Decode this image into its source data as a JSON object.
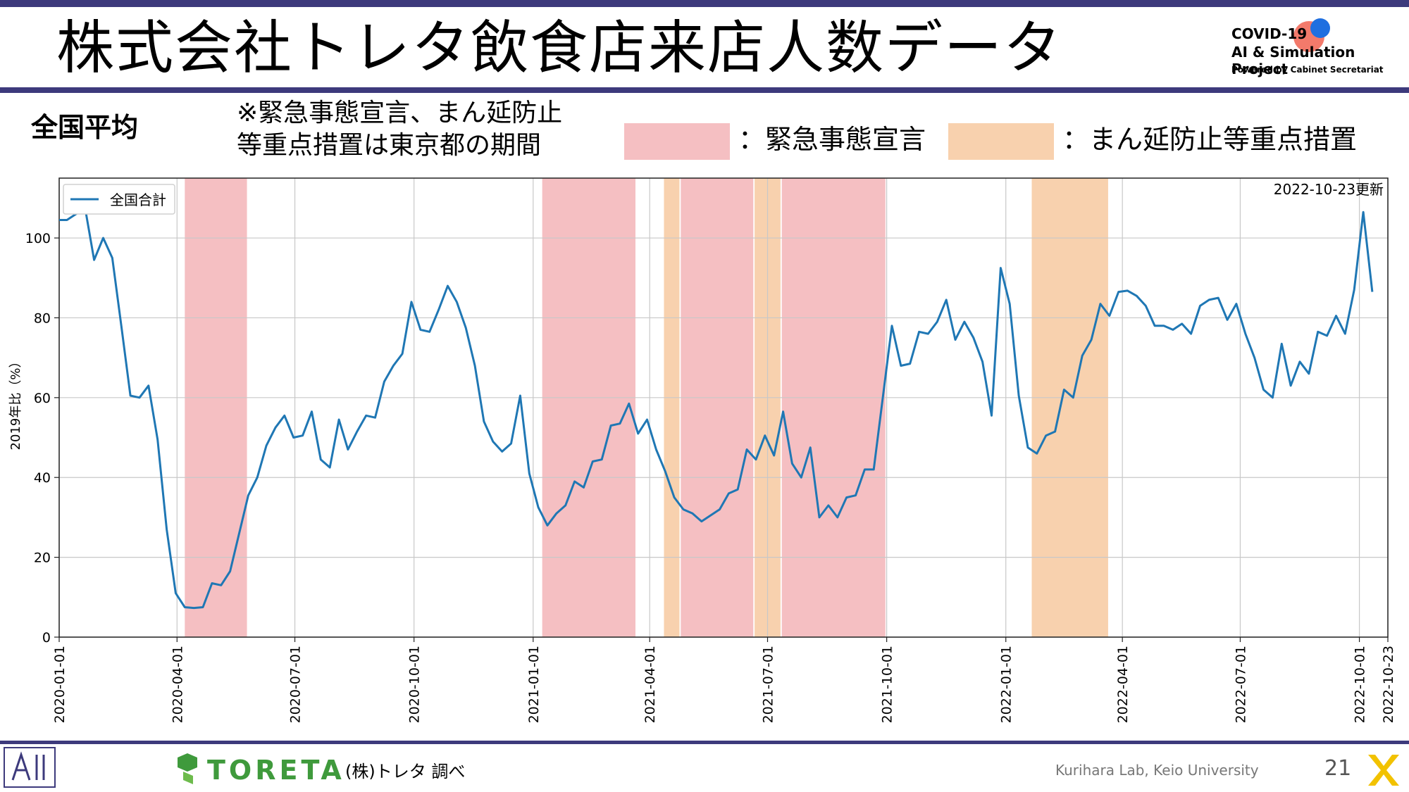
{
  "header": {
    "title": "株式会社トレタ飲食店来店人数データ"
  },
  "logo": {
    "line1": "COVID-19",
    "line2": "AI & Simulation Project",
    "line3": "Powered by Cabinet Secretariat"
  },
  "subtitle": "全国平均",
  "note": {
    "line1": "※緊急事態宣言、まん延防止",
    "line2": "等重点措置は東京都の期間"
  },
  "legend_boxes": [
    {
      "label": "：緊急事態宣言",
      "color": "#f5bfc2"
    },
    {
      "label": "：まん延防止等重点措置",
      "color": "#f8d1ae"
    }
  ],
  "footer": {
    "brand": "TORETA",
    "source": "(株)トレタ 調べ",
    "credit": "Kurihara Lab, Keio University",
    "page": "21"
  },
  "colors": {
    "accent": "#3d3a7c",
    "line": "#1f77b4",
    "emergency": "#f5bfc2",
    "quasi": "#f8d1ae",
    "brand": "#3f9a3c"
  },
  "chart_data": {
    "type": "line",
    "ylabel": "2019年比（%）",
    "xlabel": "",
    "updated": "2022-10-23更新",
    "ylim": [
      0,
      115
    ],
    "xlim": [
      "2020-01-01",
      "2022-10-23"
    ],
    "y_ticks": [
      0,
      20,
      40,
      60,
      80,
      100
    ],
    "x_ticks": [
      "2020-01-01",
      "2020-04-01",
      "2020-07-01",
      "2020-10-01",
      "2021-01-01",
      "2021-04-01",
      "2021-07-01",
      "2021-10-01",
      "2022-01-01",
      "2022-04-01",
      "2022-07-01",
      "2022-10-01",
      "2022-10-23"
    ],
    "grid": true,
    "legend": "top-left",
    "shaded_periods": [
      {
        "kind": "emergency",
        "start": "2020-04-07",
        "end": "2020-05-25"
      },
      {
        "kind": "emergency",
        "start": "2021-01-08",
        "end": "2021-03-21"
      },
      {
        "kind": "quasi",
        "start": "2021-04-12",
        "end": "2021-04-24"
      },
      {
        "kind": "emergency",
        "start": "2021-04-25",
        "end": "2021-06-20"
      },
      {
        "kind": "quasi",
        "start": "2021-06-21",
        "end": "2021-07-11"
      },
      {
        "kind": "emergency",
        "start": "2021-07-12",
        "end": "2021-09-30"
      },
      {
        "kind": "quasi",
        "start": "2022-01-21",
        "end": "2022-03-21"
      }
    ],
    "series": [
      {
        "name": "全国合計",
        "points": [
          [
            "2020-01-01",
            104.5
          ],
          [
            "2020-01-07",
            104.5
          ],
          [
            "2020-01-14",
            106
          ],
          [
            "2020-01-21",
            107.5
          ],
          [
            "2020-01-28",
            94.5
          ],
          [
            "2020-02-04",
            100
          ],
          [
            "2020-02-11",
            95
          ],
          [
            "2020-02-18",
            78
          ],
          [
            "2020-02-25",
            60.5
          ],
          [
            "2020-03-03",
            60
          ],
          [
            "2020-03-10",
            63
          ],
          [
            "2020-03-17",
            49.5
          ],
          [
            "2020-03-24",
            27
          ],
          [
            "2020-03-31",
            11
          ],
          [
            "2020-04-07",
            7.5
          ],
          [
            "2020-04-14",
            7.3
          ],
          [
            "2020-04-21",
            7.5
          ],
          [
            "2020-04-28",
            13.5
          ],
          [
            "2020-05-05",
            13
          ],
          [
            "2020-05-12",
            16.5
          ],
          [
            "2020-05-19",
            26
          ],
          [
            "2020-05-26",
            35.5
          ],
          [
            "2020-06-02",
            40
          ],
          [
            "2020-06-09",
            48
          ],
          [
            "2020-06-16",
            52.5
          ],
          [
            "2020-06-23",
            55.5
          ],
          [
            "2020-06-30",
            50
          ],
          [
            "2020-07-07",
            50.5
          ],
          [
            "2020-07-14",
            56.5
          ],
          [
            "2020-07-21",
            44.5
          ],
          [
            "2020-07-28",
            42.5
          ],
          [
            "2020-08-04",
            54.5
          ],
          [
            "2020-08-11",
            47
          ],
          [
            "2020-08-18",
            51.5
          ],
          [
            "2020-08-25",
            55.5
          ],
          [
            "2020-09-01",
            55
          ],
          [
            "2020-09-08",
            64
          ],
          [
            "2020-09-15",
            68
          ],
          [
            "2020-09-22",
            71
          ],
          [
            "2020-09-29",
            84
          ],
          [
            "2020-10-06",
            77
          ],
          [
            "2020-10-13",
            76.5
          ],
          [
            "2020-10-20",
            82
          ],
          [
            "2020-10-27",
            88
          ],
          [
            "2020-11-03",
            84
          ],
          [
            "2020-11-10",
            77.5
          ],
          [
            "2020-11-17",
            68
          ],
          [
            "2020-11-24",
            54
          ],
          [
            "2020-12-01",
            49
          ],
          [
            "2020-12-08",
            46.5
          ],
          [
            "2020-12-15",
            48.5
          ],
          [
            "2020-12-22",
            60.5
          ],
          [
            "2020-12-29",
            41
          ],
          [
            "2021-01-05",
            32.5
          ],
          [
            "2021-01-12",
            28
          ],
          [
            "2021-01-19",
            31
          ],
          [
            "2021-01-26",
            33
          ],
          [
            "2021-02-02",
            39
          ],
          [
            "2021-02-09",
            37.5
          ],
          [
            "2021-02-16",
            44
          ],
          [
            "2021-02-23",
            44.5
          ],
          [
            "2021-03-02",
            53
          ],
          [
            "2021-03-09",
            53.5
          ],
          [
            "2021-03-16",
            58.5
          ],
          [
            "2021-03-23",
            51
          ],
          [
            "2021-03-30",
            54.5
          ],
          [
            "2021-04-06",
            47
          ],
          [
            "2021-04-13",
            41.5
          ],
          [
            "2021-04-20",
            35
          ],
          [
            "2021-04-27",
            32
          ],
          [
            "2021-05-04",
            31
          ],
          [
            "2021-05-11",
            29
          ],
          [
            "2021-05-18",
            30.5
          ],
          [
            "2021-05-25",
            32
          ],
          [
            "2021-06-01",
            36
          ],
          [
            "2021-06-08",
            37
          ],
          [
            "2021-06-15",
            47
          ],
          [
            "2021-06-22",
            44.5
          ],
          [
            "2021-06-29",
            50.5
          ],
          [
            "2021-07-06",
            45.5
          ],
          [
            "2021-07-13",
            56.5
          ],
          [
            "2021-07-20",
            43.5
          ],
          [
            "2021-07-27",
            40
          ],
          [
            "2021-08-03",
            47.5
          ],
          [
            "2021-08-10",
            30
          ],
          [
            "2021-08-17",
            33
          ],
          [
            "2021-08-24",
            30
          ],
          [
            "2021-08-31",
            35
          ],
          [
            "2021-09-07",
            35.5
          ],
          [
            "2021-09-14",
            42
          ],
          [
            "2021-09-21",
            42
          ],
          [
            "2021-09-28",
            60
          ],
          [
            "2021-10-05",
            78
          ],
          [
            "2021-10-12",
            68
          ],
          [
            "2021-10-19",
            68.5
          ],
          [
            "2021-10-26",
            76.5
          ],
          [
            "2021-11-02",
            76
          ],
          [
            "2021-11-09",
            79
          ],
          [
            "2021-11-16",
            84.5
          ],
          [
            "2021-11-23",
            74.5
          ],
          [
            "2021-11-30",
            79
          ],
          [
            "2021-12-07",
            75
          ],
          [
            "2021-12-14",
            69
          ],
          [
            "2021-12-21",
            55.5
          ],
          [
            "2021-12-28",
            92.5
          ],
          [
            "2022-01-04",
            83.5
          ],
          [
            "2022-01-11",
            60.5
          ],
          [
            "2022-01-18",
            47.5
          ],
          [
            "2022-01-25",
            46
          ],
          [
            "2022-02-01",
            50.5
          ],
          [
            "2022-02-08",
            51.5
          ],
          [
            "2022-02-15",
            62
          ],
          [
            "2022-02-22",
            60
          ],
          [
            "2022-03-01",
            70.5
          ],
          [
            "2022-03-08",
            74.5
          ],
          [
            "2022-03-15",
            83.5
          ],
          [
            "2022-03-22",
            80.5
          ],
          [
            "2022-03-29",
            86.5
          ],
          [
            "2022-04-05",
            86.8
          ],
          [
            "2022-04-12",
            85.5
          ],
          [
            "2022-04-19",
            83
          ],
          [
            "2022-04-26",
            78
          ],
          [
            "2022-05-03",
            78
          ],
          [
            "2022-05-10",
            77
          ],
          [
            "2022-05-17",
            78.5
          ],
          [
            "2022-05-24",
            76
          ],
          [
            "2022-05-31",
            83
          ],
          [
            "2022-06-07",
            84.5
          ],
          [
            "2022-06-14",
            85
          ],
          [
            "2022-06-21",
            79.5
          ],
          [
            "2022-06-28",
            83.5
          ],
          [
            "2022-07-05",
            76
          ],
          [
            "2022-07-12",
            70
          ],
          [
            "2022-07-19",
            62
          ],
          [
            "2022-07-26",
            60
          ],
          [
            "2022-08-02",
            73.5
          ],
          [
            "2022-08-09",
            63
          ],
          [
            "2022-08-16",
            69
          ],
          [
            "2022-08-23",
            66
          ],
          [
            "2022-08-30",
            76.5
          ],
          [
            "2022-09-06",
            75.5
          ],
          [
            "2022-09-13",
            80.5
          ],
          [
            "2022-09-20",
            76
          ],
          [
            "2022-09-27",
            87
          ],
          [
            "2022-10-04",
            106.5
          ],
          [
            "2022-10-11",
            86.5
          ]
        ]
      }
    ]
  }
}
